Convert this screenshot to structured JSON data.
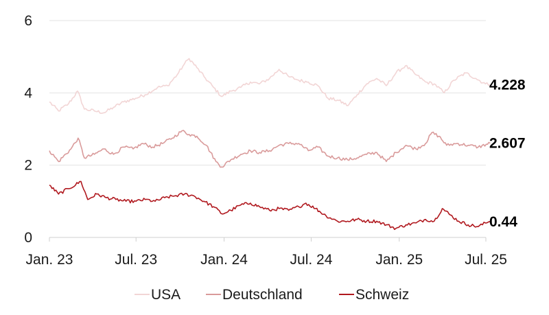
{
  "chart_data": {
    "type": "line",
    "title": "",
    "xlabel": "",
    "ylabel": "",
    "ylim": [
      0,
      6
    ],
    "yticks": [
      "0",
      "2",
      "4",
      "6"
    ],
    "xticks": [
      "Jan. 23",
      "Jul. 23",
      "Jan. 24",
      "Jul. 24",
      "Jan. 25",
      "Jul. 25"
    ],
    "xtick_dates": [
      "2023-01-01",
      "2023-07-01",
      "2024-01-01",
      "2024-07-01",
      "2025-01-01",
      "2025-07-01"
    ],
    "grid": true,
    "legend_position": "bottom",
    "series": [
      {
        "name": "USA",
        "color": "#f2d5d5",
        "end_label": "4.228",
        "points": [
          [
            "2023-01-01",
            3.75
          ],
          [
            "2023-01-20",
            3.5
          ],
          [
            "2023-02-10",
            3.7
          ],
          [
            "2023-03-01",
            4.05
          ],
          [
            "2023-03-15",
            3.55
          ],
          [
            "2023-04-05",
            3.5
          ],
          [
            "2023-04-25",
            3.45
          ],
          [
            "2023-05-15",
            3.6
          ],
          [
            "2023-06-05",
            3.75
          ],
          [
            "2023-06-30",
            3.85
          ],
          [
            "2023-07-20",
            3.95
          ],
          [
            "2023-08-15",
            4.15
          ],
          [
            "2023-09-05",
            4.2
          ],
          [
            "2023-09-25",
            4.5
          ],
          [
            "2023-10-10",
            4.8
          ],
          [
            "2023-10-20",
            4.95
          ],
          [
            "2023-11-05",
            4.7
          ],
          [
            "2023-11-20",
            4.45
          ],
          [
            "2023-12-10",
            4.15
          ],
          [
            "2023-12-27",
            3.9
          ],
          [
            "2024-01-15",
            4.05
          ],
          [
            "2024-02-05",
            4.15
          ],
          [
            "2024-02-25",
            4.3
          ],
          [
            "2024-03-15",
            4.25
          ],
          [
            "2024-04-05",
            4.4
          ],
          [
            "2024-04-25",
            4.65
          ],
          [
            "2024-05-15",
            4.45
          ],
          [
            "2024-06-05",
            4.35
          ],
          [
            "2024-06-25",
            4.3
          ],
          [
            "2024-07-15",
            4.2
          ],
          [
            "2024-08-05",
            3.85
          ],
          [
            "2024-08-25",
            3.8
          ],
          [
            "2024-09-16",
            3.65
          ],
          [
            "2024-10-05",
            3.95
          ],
          [
            "2024-10-25",
            4.25
          ],
          [
            "2024-11-15",
            4.4
          ],
          [
            "2024-12-05",
            4.2
          ],
          [
            "2024-12-25",
            4.55
          ],
          [
            "2025-01-14",
            4.75
          ],
          [
            "2025-02-05",
            4.5
          ],
          [
            "2025-02-25",
            4.3
          ],
          [
            "2025-03-15",
            4.25
          ],
          [
            "2025-04-05",
            4.0
          ],
          [
            "2025-04-25",
            4.35
          ],
          [
            "2025-05-20",
            4.55
          ],
          [
            "2025-06-10",
            4.4
          ],
          [
            "2025-06-30",
            4.25
          ],
          [
            "2025-07-10",
            4.228
          ]
        ]
      },
      {
        "name": "Deutschland",
        "color": "#d99a9a",
        "end_label": "2.607",
        "points": [
          [
            "2023-01-01",
            2.4
          ],
          [
            "2023-01-20",
            2.1
          ],
          [
            "2023-02-15",
            2.45
          ],
          [
            "2023-03-02",
            2.75
          ],
          [
            "2023-03-15",
            2.2
          ],
          [
            "2023-04-05",
            2.3
          ],
          [
            "2023-04-25",
            2.45
          ],
          [
            "2023-05-15",
            2.3
          ],
          [
            "2023-06-05",
            2.5
          ],
          [
            "2023-06-25",
            2.45
          ],
          [
            "2023-07-15",
            2.6
          ],
          [
            "2023-08-05",
            2.5
          ],
          [
            "2023-08-25",
            2.6
          ],
          [
            "2023-09-15",
            2.75
          ],
          [
            "2023-10-05",
            2.95
          ],
          [
            "2023-10-20",
            2.85
          ],
          [
            "2023-11-05",
            2.8
          ],
          [
            "2023-11-25",
            2.55
          ],
          [
            "2023-12-15",
            2.1
          ],
          [
            "2023-12-27",
            1.95
          ],
          [
            "2024-01-15",
            2.15
          ],
          [
            "2024-02-05",
            2.3
          ],
          [
            "2024-02-25",
            2.4
          ],
          [
            "2024-03-15",
            2.35
          ],
          [
            "2024-04-05",
            2.4
          ],
          [
            "2024-04-25",
            2.55
          ],
          [
            "2024-05-15",
            2.6
          ],
          [
            "2024-06-05",
            2.6
          ],
          [
            "2024-06-25",
            2.4
          ],
          [
            "2024-07-15",
            2.5
          ],
          [
            "2024-08-05",
            2.25
          ],
          [
            "2024-08-25",
            2.2
          ],
          [
            "2024-09-15",
            2.15
          ],
          [
            "2024-10-05",
            2.2
          ],
          [
            "2024-10-25",
            2.3
          ],
          [
            "2024-11-15",
            2.35
          ],
          [
            "2024-12-05",
            2.1
          ],
          [
            "2024-12-25",
            2.35
          ],
          [
            "2025-01-15",
            2.55
          ],
          [
            "2025-02-05",
            2.45
          ],
          [
            "2025-02-25",
            2.6
          ],
          [
            "2025-03-10",
            2.9
          ],
          [
            "2025-03-25",
            2.8
          ],
          [
            "2025-04-10",
            2.55
          ],
          [
            "2025-05-01",
            2.6
          ],
          [
            "2025-05-25",
            2.55
          ],
          [
            "2025-06-15",
            2.5
          ],
          [
            "2025-07-10",
            2.607
          ]
        ]
      },
      {
        "name": "Schweiz",
        "color": "#b0181e",
        "end_label": "0.44",
        "points": [
          [
            "2023-01-01",
            1.45
          ],
          [
            "2023-01-20",
            1.2
          ],
          [
            "2023-02-10",
            1.35
          ],
          [
            "2023-03-08",
            1.55
          ],
          [
            "2023-03-22",
            1.05
          ],
          [
            "2023-04-10",
            1.2
          ],
          [
            "2023-04-30",
            1.1
          ],
          [
            "2023-05-20",
            1.05
          ],
          [
            "2023-06-10",
            1.0
          ],
          [
            "2023-07-01",
            1.0
          ],
          [
            "2023-07-20",
            1.05
          ],
          [
            "2023-08-10",
            1.0
          ],
          [
            "2023-08-30",
            1.1
          ],
          [
            "2023-09-20",
            1.15
          ],
          [
            "2023-10-10",
            1.2
          ],
          [
            "2023-10-30",
            1.15
          ],
          [
            "2023-11-20",
            1.0
          ],
          [
            "2023-12-10",
            0.85
          ],
          [
            "2023-12-28",
            0.65
          ],
          [
            "2024-01-15",
            0.75
          ],
          [
            "2024-02-05",
            0.9
          ],
          [
            "2024-02-25",
            0.95
          ],
          [
            "2024-03-15",
            0.85
          ],
          [
            "2024-04-05",
            0.75
          ],
          [
            "2024-04-25",
            0.8
          ],
          [
            "2024-05-15",
            0.75
          ],
          [
            "2024-06-05",
            0.85
          ],
          [
            "2024-06-20",
            0.95
          ],
          [
            "2024-07-10",
            0.8
          ],
          [
            "2024-08-01",
            0.6
          ],
          [
            "2024-08-25",
            0.45
          ],
          [
            "2024-09-15",
            0.45
          ],
          [
            "2024-10-05",
            0.5
          ],
          [
            "2024-10-25",
            0.45
          ],
          [
            "2024-11-15",
            0.45
          ],
          [
            "2024-12-05",
            0.35
          ],
          [
            "2024-12-25",
            0.25
          ],
          [
            "2025-01-15",
            0.35
          ],
          [
            "2025-02-05",
            0.4
          ],
          [
            "2025-02-25",
            0.5
          ],
          [
            "2025-03-15",
            0.45
          ],
          [
            "2025-04-01",
            0.8
          ],
          [
            "2025-04-15",
            0.65
          ],
          [
            "2025-05-05",
            0.45
          ],
          [
            "2025-05-25",
            0.35
          ],
          [
            "2025-06-15",
            0.3
          ],
          [
            "2025-06-30",
            0.4
          ],
          [
            "2025-07-10",
            0.44
          ]
        ]
      }
    ]
  }
}
